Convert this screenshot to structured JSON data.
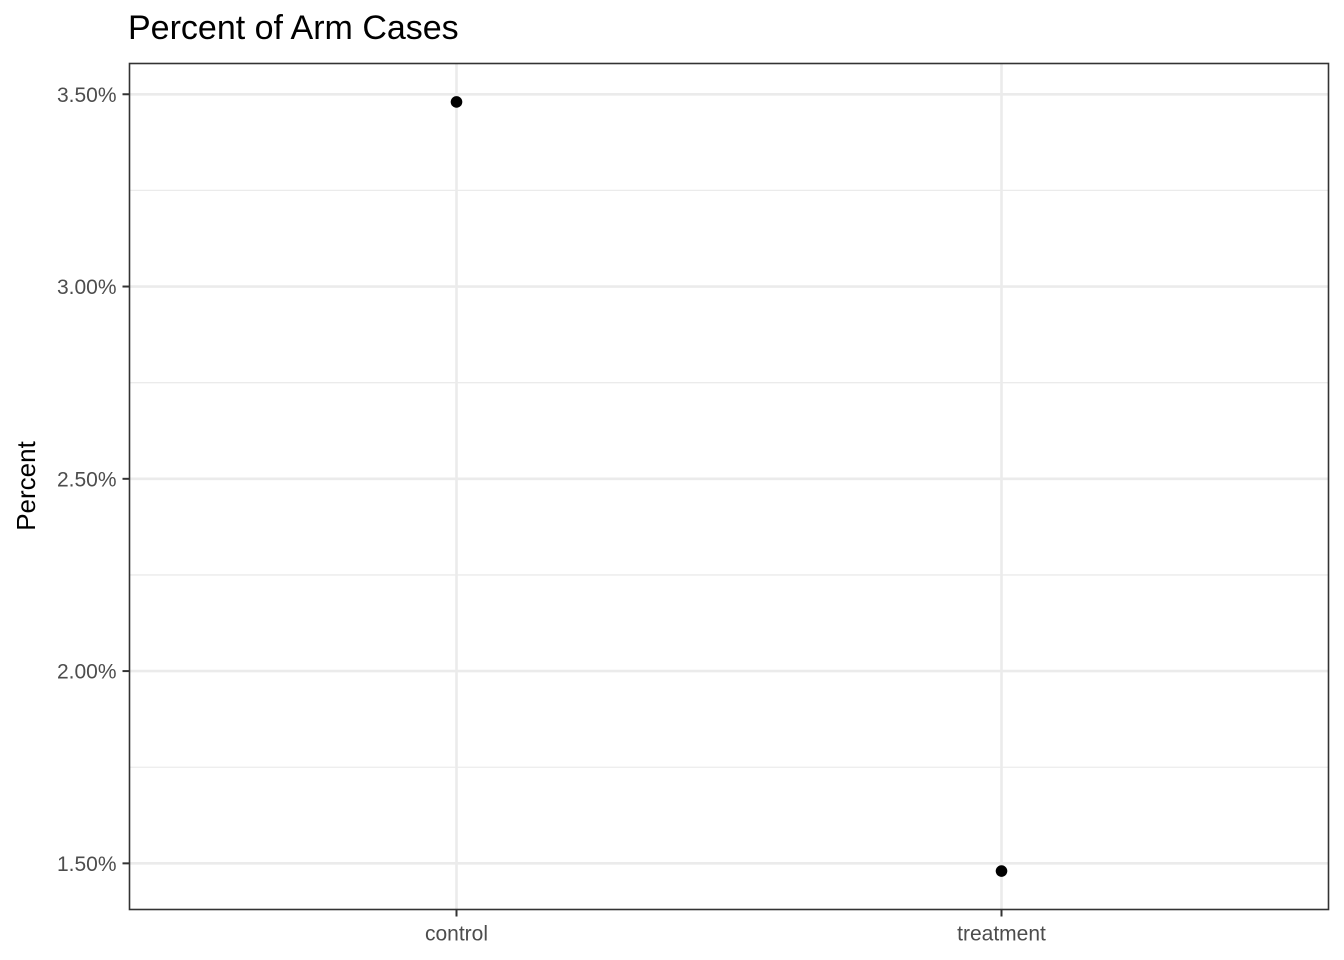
{
  "chart_data": {
    "type": "scatter",
    "title": "Percent of Arm Cases",
    "xlabel": "",
    "ylabel": "Percent",
    "categories": [
      "control",
      "treatment"
    ],
    "values": [
      0.0348,
      0.0148
    ],
    "ylim": [
      0.0138,
      0.0358
    ],
    "y_major_ticks": [
      0.015,
      0.02,
      0.025,
      0.03,
      0.035
    ],
    "y_tick_labels": [
      "1.50%",
      "2.00%",
      "2.50%",
      "3.00%",
      "3.50%"
    ],
    "y_minor_ticks": [
      0.0175,
      0.0225,
      0.0275,
      0.0325
    ],
    "grid": true,
    "legend": "none",
    "colors": {
      "point": "#000000",
      "grid": "#ebebeb",
      "border": "#333333",
      "tick_text": "#4d4d4d"
    }
  }
}
